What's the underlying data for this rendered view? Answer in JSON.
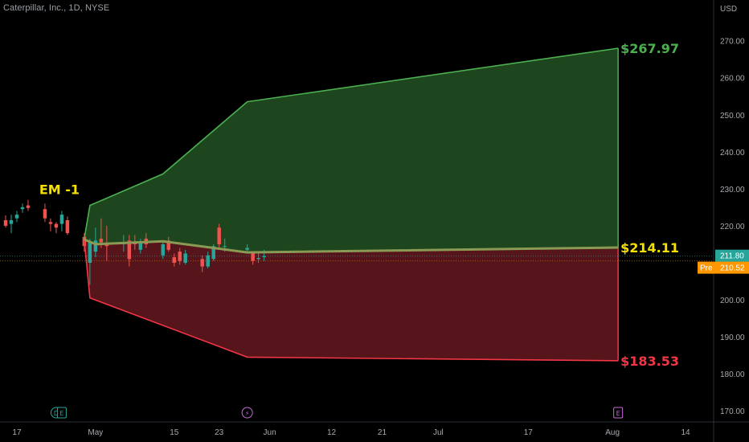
{
  "header": {
    "symbol_title": "Caterpillar, Inc., 1D, NYSE"
  },
  "price_axis": {
    "currency": "USD",
    "current_price": "211.80",
    "premarket_label": "Pre",
    "premarket_price": "210.52"
  },
  "colors": {
    "background": "#000000",
    "up_candle": "#26a69a",
    "down_candle": "#ef5350",
    "upper_band": "#4caf50",
    "upper_fill": "#1f4a20",
    "lower_band": "#f23645",
    "lower_fill": "#5a161c",
    "mid_line": "#8a9a55",
    "em_label": "#f5e100",
    "current_price_bg": "#26a69a",
    "premarket_bg": "#ff9800"
  },
  "event_markers": [
    {
      "letter": "D",
      "date": "2024-04-24",
      "kind": "dividend",
      "color": "#26a69a"
    },
    {
      "letter": "E",
      "date": "2024-04-25",
      "kind": "earnings",
      "color": "#26a69a"
    },
    {
      "letter": "⚡",
      "date": "2024-05-28",
      "kind": "split",
      "color": "#c46bd6"
    },
    {
      "letter": "E",
      "date": "2024-08-02",
      "kind": "earnings",
      "color": "#c46bd6"
    }
  ],
  "chart_data": {
    "type": "candlestick",
    "title": "Caterpillar, Inc., 1D, NYSE",
    "y_axis": {
      "unit": "USD",
      "ylim": [
        167,
        281
      ],
      "ticks": [
        170,
        180,
        190,
        200,
        210,
        220,
        230,
        240,
        250,
        260,
        270
      ],
      "tick_labels": [
        "170.00",
        "180.00",
        "190.00",
        "200.00",
        "210.00",
        "220.00",
        "230.00",
        "240.00",
        "250.00",
        "260.00",
        "270.00"
      ]
    },
    "x_axis": {
      "range": [
        "2024-04-14",
        "2024-08-19"
      ],
      "ticks": [
        {
          "date": "2024-04-17",
          "label": "17"
        },
        {
          "date": "2024-05-01",
          "label": "May"
        },
        {
          "date": "2024-05-15",
          "label": "15"
        },
        {
          "date": "2024-05-23",
          "label": "23"
        },
        {
          "date": "2024-06-01",
          "label": "Jun"
        },
        {
          "date": "2024-06-12",
          "label": "12"
        },
        {
          "date": "2024-06-21",
          "label": "21"
        },
        {
          "date": "2024-07-01",
          "label": "Jul"
        },
        {
          "date": "2024-07-17",
          "label": "17"
        },
        {
          "date": "2024-08-01",
          "label": "Aug"
        },
        {
          "date": "2024-08-14",
          "label": "14"
        }
      ]
    },
    "candles": [
      {
        "date": "2024-04-15",
        "open": 221.5,
        "high": 222.8,
        "low": 219.5,
        "close": 220.0
      },
      {
        "date": "2024-04-16",
        "open": 220.5,
        "high": 223.0,
        "low": 218.0,
        "close": 221.5
      },
      {
        "date": "2024-04-17",
        "open": 222.0,
        "high": 224.0,
        "low": 221.0,
        "close": 223.0
      },
      {
        "date": "2024-04-18",
        "open": 224.5,
        "high": 226.0,
        "low": 223.5,
        "close": 225.0
      },
      {
        "date": "2024-04-19",
        "open": 225.5,
        "high": 227.0,
        "low": 224.0,
        "close": 224.8
      },
      {
        "date": "2024-04-22",
        "open": 224.5,
        "high": 226.0,
        "low": 221.0,
        "close": 222.0
      },
      {
        "date": "2024-04-23",
        "open": 221.0,
        "high": 222.0,
        "low": 218.5,
        "close": 220.5
      },
      {
        "date": "2024-04-24",
        "open": 220.5,
        "high": 221.0,
        "low": 218.0,
        "close": 219.5
      },
      {
        "date": "2024-04-25",
        "open": 220.5,
        "high": 224.0,
        "low": 218.5,
        "close": 223.0
      },
      {
        "date": "2024-04-26",
        "open": 221.5,
        "high": 222.5,
        "low": 217.5,
        "close": 218.0
      },
      {
        "date": "2024-04-29",
        "open": 217.0,
        "high": 218.0,
        "low": 213.0,
        "close": 214.5
      },
      {
        "date": "2024-04-30",
        "open": 210.0,
        "high": 216.5,
        "low": 204.0,
        "close": 215.5
      },
      {
        "date": "2024-05-01",
        "open": 213.0,
        "high": 219.5,
        "low": 211.5,
        "close": 216.0
      },
      {
        "date": "2024-05-02",
        "open": 216.5,
        "high": 222.0,
        "low": 214.0,
        "close": 215.5
      },
      {
        "date": "2024-05-03",
        "open": 215.0,
        "high": 220.0,
        "low": 210.5,
        "close": 214.5
      },
      {
        "date": "2024-05-06",
        "open": 215.0,
        "high": 217.5,
        "low": 213.0,
        "close": 215.5
      },
      {
        "date": "2024-05-07",
        "open": 216.0,
        "high": 217.5,
        "low": 209.0,
        "close": 211.0
      },
      {
        "date": "2024-05-08",
        "open": 215.5,
        "high": 217.5,
        "low": 213.5,
        "close": 215.0
      },
      {
        "date": "2024-05-09",
        "open": 213.5,
        "high": 216.5,
        "low": 212.5,
        "close": 215.5
      },
      {
        "date": "2024-05-10",
        "open": 216.5,
        "high": 218.0,
        "low": 214.0,
        "close": 215.0
      },
      {
        "date": "2024-05-13",
        "open": 212.0,
        "high": 216.0,
        "low": 211.0,
        "close": 215.0
      },
      {
        "date": "2024-05-14",
        "open": 216.0,
        "high": 217.0,
        "low": 213.0,
        "close": 213.5
      },
      {
        "date": "2024-05-15",
        "open": 211.5,
        "high": 212.5,
        "low": 209.0,
        "close": 210.0
      },
      {
        "date": "2024-05-16",
        "open": 213.0,
        "high": 214.0,
        "low": 209.5,
        "close": 210.5
      },
      {
        "date": "2024-05-17",
        "open": 210.0,
        "high": 213.5,
        "low": 209.5,
        "close": 212.5
      },
      {
        "date": "2024-05-20",
        "open": 211.0,
        "high": 212.0,
        "low": 207.5,
        "close": 209.0
      },
      {
        "date": "2024-05-21",
        "open": 209.0,
        "high": 213.0,
        "low": 208.5,
        "close": 212.0
      },
      {
        "date": "2024-05-22",
        "open": 211.0,
        "high": 215.0,
        "low": 210.5,
        "close": 214.5
      },
      {
        "date": "2024-05-23",
        "open": 219.5,
        "high": 220.5,
        "low": 214.0,
        "close": 215.0
      },
      {
        "date": "2024-05-24",
        "open": 214.5,
        "high": 216.5,
        "low": 213.0,
        "close": 214.5
      },
      {
        "date": "2024-05-28",
        "open": 213.5,
        "high": 215.0,
        "low": 212.5,
        "close": 214.0
      },
      {
        "date": "2024-05-29",
        "open": 212.5,
        "high": 213.0,
        "low": 209.5,
        "close": 210.5
      },
      {
        "date": "2024-05-30",
        "open": 211.0,
        "high": 213.0,
        "low": 210.0,
        "close": 211.3
      },
      {
        "date": "2024-05-31",
        "open": 211.5,
        "high": 213.5,
        "low": 210.5,
        "close": 211.8
      }
    ],
    "expected_move": {
      "label": "EM -1",
      "upper": [
        {
          "date": "2024-04-29",
          "value": 216.5
        },
        {
          "date": "2024-04-30",
          "value": 225.5
        },
        {
          "date": "2024-05-13",
          "value": 234.0
        },
        {
          "date": "2024-05-28",
          "value": 253.5
        },
        {
          "date": "2024-08-02",
          "value": 267.97
        }
      ],
      "mid": [
        {
          "date": "2024-04-29",
          "value": 216.3
        },
        {
          "date": "2024-05-01",
          "value": 215.0
        },
        {
          "date": "2024-05-13",
          "value": 215.8
        },
        {
          "date": "2024-05-28",
          "value": 212.8
        },
        {
          "date": "2024-08-02",
          "value": 214.11
        }
      ],
      "lower": [
        {
          "date": "2024-04-29",
          "value": 216.0
        },
        {
          "date": "2024-04-30",
          "value": 200.5
        },
        {
          "date": "2024-05-28",
          "value": 184.5
        },
        {
          "date": "2024-08-02",
          "value": 183.53
        }
      ],
      "labels": {
        "upper": "$267.97",
        "mid": "$214.11",
        "lower": "$183.53"
      }
    }
  }
}
